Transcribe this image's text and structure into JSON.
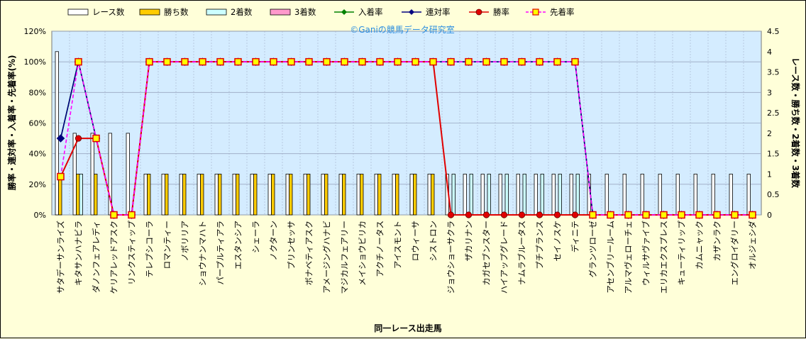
{
  "chart_data": {
    "type": "bar+line",
    "watermark": "©Ganiの競馬データ研究室",
    "xlabel": "同一レース出走馬",
    "ylabel_left": "勝率・連対率・入着率・先着率(%)",
    "ylabel_right": "レース数・勝ち数・2着数・3着数",
    "ylim_left": [
      0,
      120
    ],
    "ylim_right": [
      0,
      4.5
    ],
    "yticks_left": [
      "0%",
      "20%",
      "40%",
      "60%",
      "80%",
      "100%",
      "120%"
    ],
    "yticks_right": [
      "0",
      "0.5",
      "1",
      "1.5",
      "2",
      "2.5",
      "3",
      "3.5",
      "4",
      "4.5"
    ],
    "grid": true,
    "legend_position": "top",
    "colors": {
      "races": "#ffffff",
      "wins": "#ffcc00",
      "second": "#ccffff",
      "third": "#ff99cc",
      "place_rate": "#008000",
      "quinella_rate": "#000080",
      "win_rate": "#e00000",
      "beat_rate": "#ff00ff",
      "plot_bg": "#d4ecff",
      "grid": "#9aa7c0"
    },
    "legend": [
      "レース数",
      "勝ち数",
      "2着数",
      "3着数",
      "入着率",
      "連対率",
      "勝率",
      "先着率"
    ],
    "categories": [
      "サタデーサンライズ",
      "キタサンハナビラ",
      "ダノンフェアレディ",
      "ケリアレッドアスク",
      "リンクスティップ",
      "テレプシコーラ",
      "ロマンティー",
      "ノボリリア",
      "ショウナンマハト",
      "パープルティアラ",
      "エスタンシア",
      "シェーラ",
      "ノクターン",
      "プリンセッサ",
      "ボナベティアスク",
      "アメージングハナビ",
      "マジカルフェアリー",
      "メイショウビリカ",
      "アクチノータス",
      "アイスモント",
      "ロウィーサ",
      "シストロン",
      "ジョウショーサクラ",
      "ザカリナン",
      "カガセブンスター",
      "ハイアップグレード",
      "ナムラブルータス",
      "プチプランス",
      "セイノスケ",
      "ディニテ",
      "グランツローゼ",
      "アセンブリールーム",
      "アルマヴェローチェ",
      "ウィルサヴァイブ",
      "エリカエクスプレス",
      "キューティリップ",
      "カムニャック",
      "カザンラク",
      "エングロイダリー",
      "オルジェシダ"
    ],
    "series": [
      {
        "name": "レース数",
        "axis": "right",
        "values": [
          4,
          2,
          2,
          2,
          2,
          1,
          1,
          1,
          1,
          1,
          1,
          1,
          1,
          1,
          1,
          1,
          1,
          1,
          1,
          1,
          1,
          1,
          1,
          1,
          1,
          1,
          1,
          1,
          1,
          1,
          1,
          1,
          1,
          1,
          1,
          1,
          1,
          1,
          1,
          1
        ]
      },
      {
        "name": "勝ち数",
        "axis": "right",
        "values": [
          1,
          1,
          1,
          0,
          0,
          1,
          1,
          1,
          1,
          1,
          1,
          1,
          1,
          1,
          1,
          1,
          1,
          1,
          1,
          1,
          1,
          1,
          0,
          0,
          0,
          0,
          0,
          0,
          0,
          0,
          0,
          0,
          0,
          0,
          0,
          0,
          0,
          0,
          0,
          0
        ]
      },
      {
        "name": "2着数",
        "axis": "right",
        "values": [
          0,
          1,
          0,
          0,
          0,
          0,
          0,
          0,
          0,
          0,
          0,
          0,
          0,
          0,
          0,
          0,
          0,
          0,
          0,
          0,
          0,
          0,
          1,
          1,
          1,
          1,
          1,
          1,
          1,
          1,
          0,
          0,
          0,
          0,
          0,
          0,
          0,
          0,
          0,
          0
        ]
      },
      {
        "name": "3着数",
        "axis": "right",
        "values": [
          0,
          0,
          0,
          0,
          0,
          0,
          0,
          0,
          0,
          0,
          0,
          0,
          0,
          0,
          0,
          0,
          0,
          0,
          0,
          0,
          0,
          0,
          0,
          0,
          0,
          0,
          0,
          0,
          0,
          0,
          0,
          0,
          0,
          0,
          0,
          0,
          0,
          0,
          0,
          0
        ]
      },
      {
        "name": "入着率",
        "axis": "left",
        "values": [
          50,
          100,
          50,
          0,
          0,
          100,
          100,
          100,
          100,
          100,
          100,
          100,
          100,
          100,
          100,
          100,
          100,
          100,
          100,
          100,
          100,
          100,
          100,
          100,
          100,
          100,
          100,
          100,
          100,
          100,
          0,
          0,
          0,
          0,
          0,
          0,
          0,
          0,
          0,
          0
        ]
      },
      {
        "name": "連対率",
        "axis": "left",
        "values": [
          50,
          100,
          50,
          0,
          0,
          100,
          100,
          100,
          100,
          100,
          100,
          100,
          100,
          100,
          100,
          100,
          100,
          100,
          100,
          100,
          100,
          100,
          100,
          100,
          100,
          100,
          100,
          100,
          100,
          100,
          0,
          0,
          0,
          0,
          0,
          0,
          0,
          0,
          0,
          0
        ]
      },
      {
        "name": "勝率",
        "axis": "left",
        "values": [
          25,
          50,
          50,
          0,
          0,
          100,
          100,
          100,
          100,
          100,
          100,
          100,
          100,
          100,
          100,
          100,
          100,
          100,
          100,
          100,
          100,
          100,
          0,
          0,
          0,
          0,
          0,
          0,
          0,
          0,
          0,
          0,
          0,
          0,
          0,
          0,
          0,
          0,
          0,
          0
        ]
      },
      {
        "name": "先着率",
        "axis": "left",
        "values": [
          25,
          100,
          50,
          0,
          0,
          100,
          100,
          100,
          100,
          100,
          100,
          100,
          100,
          100,
          100,
          100,
          100,
          100,
          100,
          100,
          100,
          100,
          100,
          100,
          100,
          100,
          100,
          100,
          100,
          100,
          0,
          0,
          0,
          0,
          0,
          0,
          0,
          0,
          0,
          0
        ]
      }
    ]
  }
}
